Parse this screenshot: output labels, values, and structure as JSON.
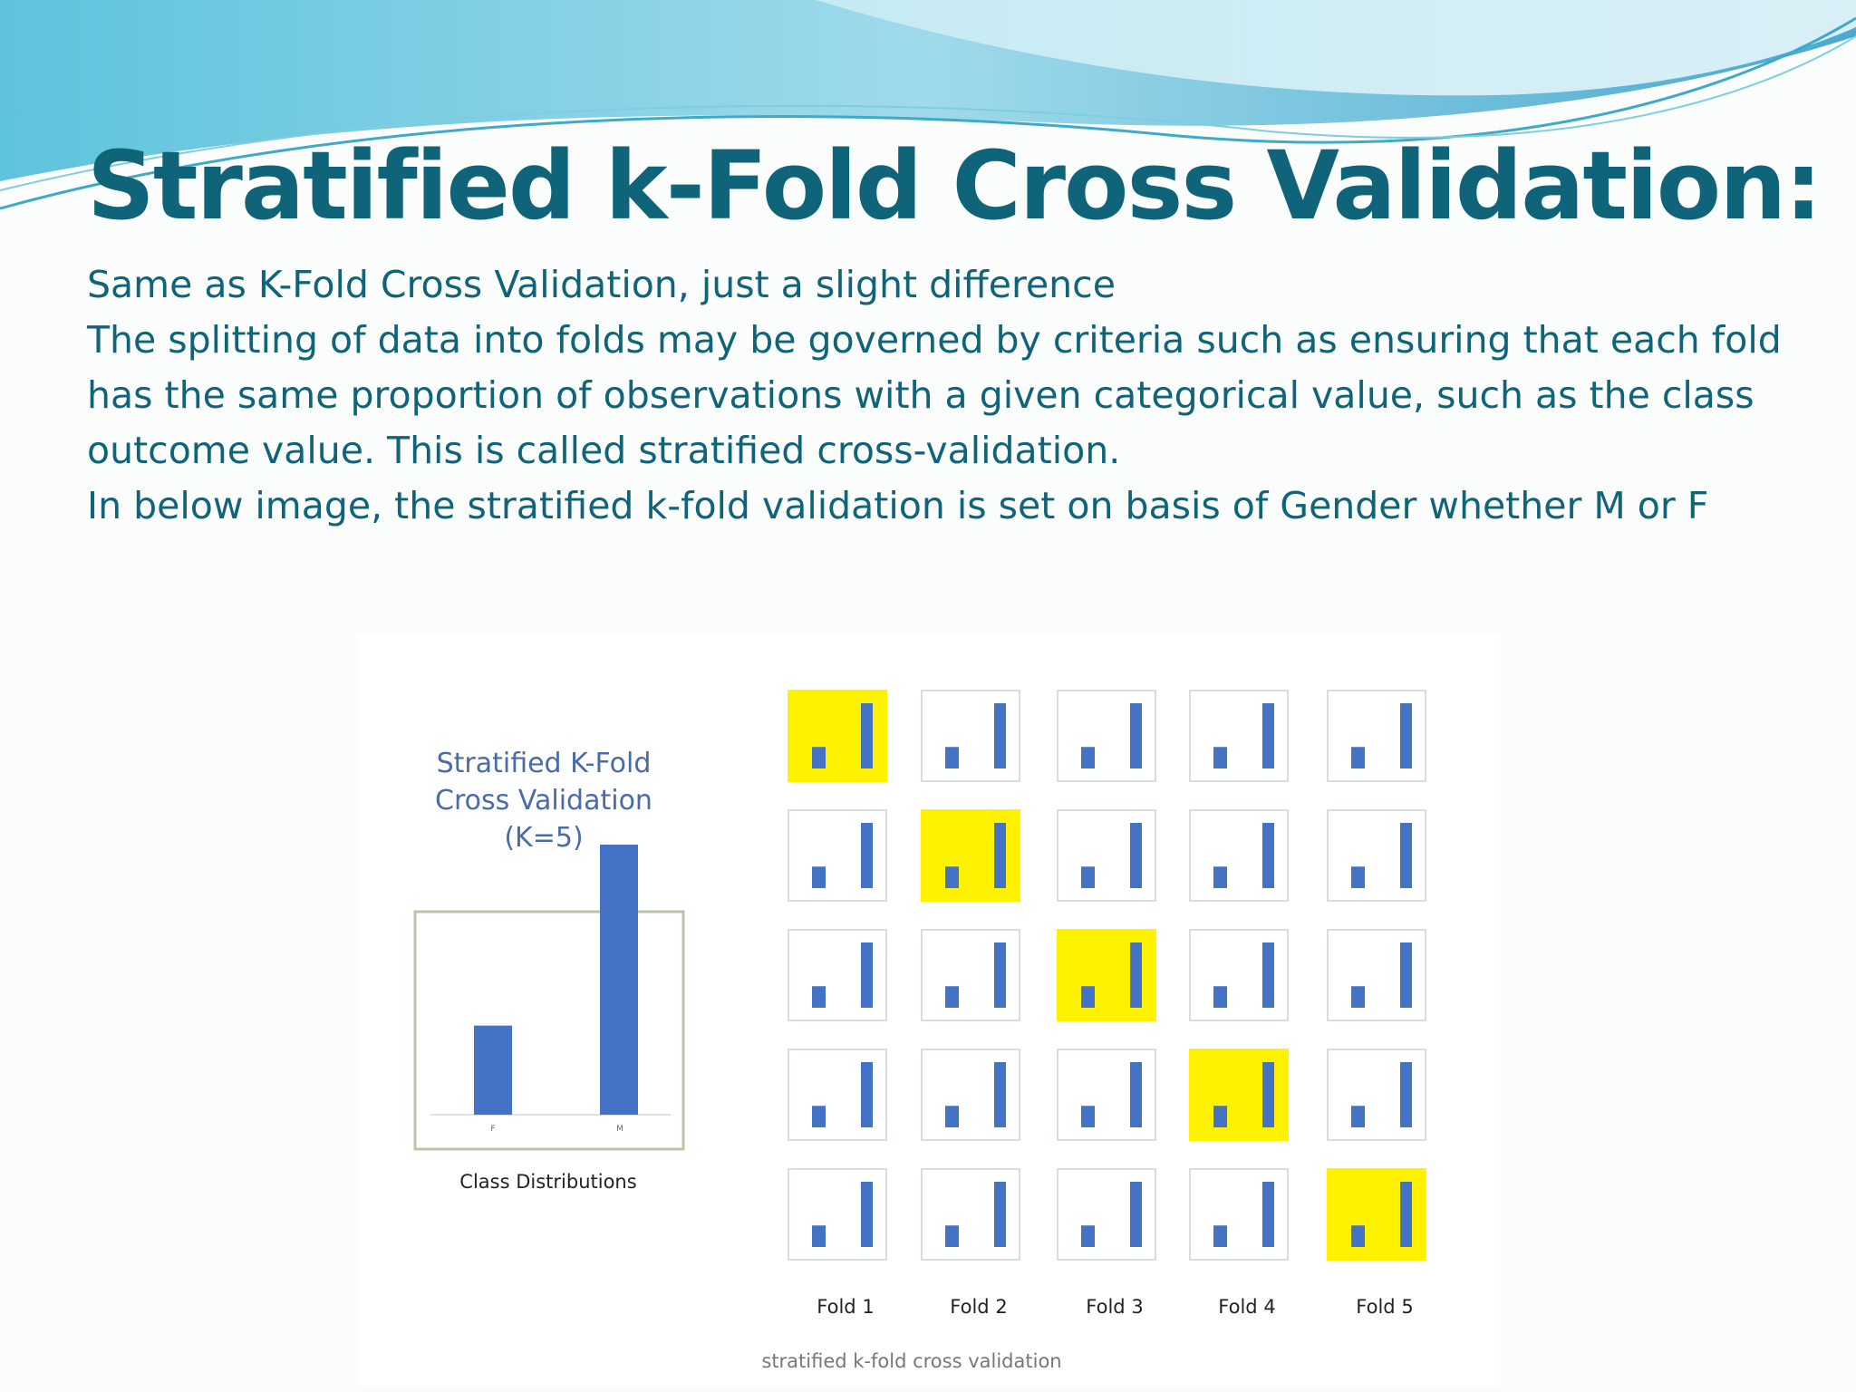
{
  "slide": {
    "title": "Stratified k-Fold Cross Validation:",
    "lines": [
      "Same as K-Fold Cross Validation, just a slight difference",
      "The splitting of data into folds may be governed by criteria such as ensuring that each fold has the same proportion of observations with a given categorical value, such as the class outcome value. This is called stratified cross-validation.",
      "In below image, the stratified k-fold validation is set on basis of Gender whether M or F"
    ]
  },
  "diagram": {
    "title_lines": [
      "Stratified K-Fold",
      "Cross Validation",
      "(K=5)"
    ],
    "class_distribution": {
      "label": "Class Distributions",
      "categories": [
        "F",
        "M"
      ],
      "values": [
        0.33,
        1.0
      ]
    },
    "folds": [
      "Fold 1",
      "Fold 2",
      "Fold 3",
      "Fold 4",
      "Fold 5"
    ],
    "test_fold_per_row": [
      0,
      1,
      2,
      3,
      4
    ],
    "caption": "stratified k-fold cross validation",
    "colors": {
      "bar": "#4472c4",
      "highlight": "#fff200",
      "title": "#4a6aa8",
      "heading": "#0f6479"
    }
  }
}
